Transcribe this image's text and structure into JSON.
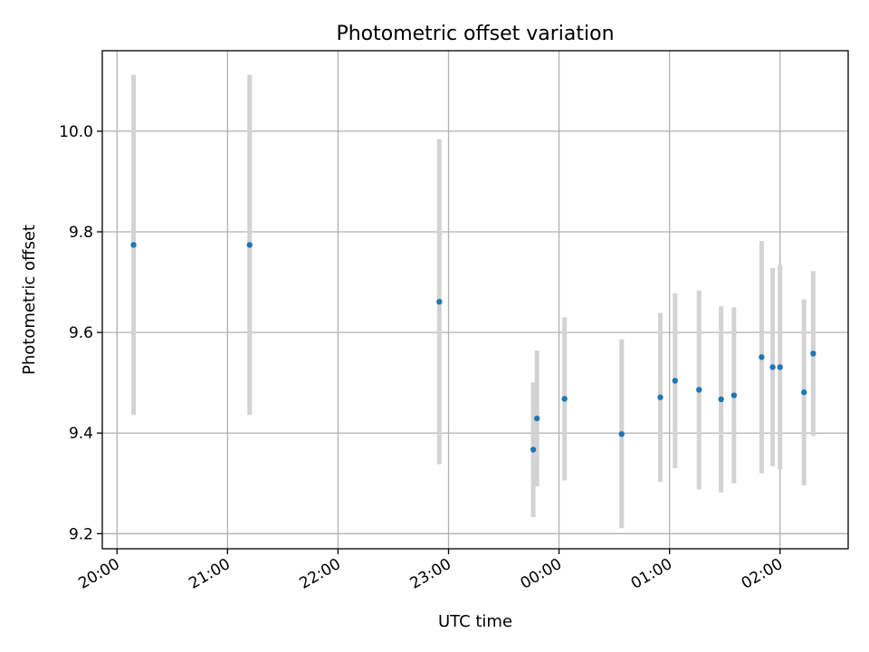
{
  "chart_data": {
    "type": "scatter",
    "title": "Photometric offset variation",
    "xlabel": "UTC time",
    "ylabel": "Photometric offset",
    "x_ticks": [
      "20:00",
      "21:00",
      "22:00",
      "23:00",
      "00:00",
      "01:00",
      "02:00"
    ],
    "y_ticks": [
      "9.2",
      "9.4",
      "9.6",
      "9.8",
      "10.0"
    ],
    "x_range": [
      "19:52",
      "02:37"
    ],
    "ylim": [
      9.17,
      10.16
    ],
    "grid": true,
    "colors": {
      "point": "#1f77b4",
      "errorbar": "#d3d3d3",
      "grid": "#b0b0b0"
    },
    "points": [
      {
        "x": "20:09",
        "y": 9.774,
        "ylo": 9.436,
        "yhi": 10.112
      },
      {
        "x": "21:12",
        "y": 9.774,
        "ylo": 9.436,
        "yhi": 10.112
      },
      {
        "x": "22:55",
        "y": 9.661,
        "ylo": 9.338,
        "yhi": 9.984
      },
      {
        "x": "23:46",
        "y": 9.367,
        "ylo": 9.233,
        "yhi": 9.501
      },
      {
        "x": "23:48",
        "y": 9.429,
        "ylo": 9.294,
        "yhi": 9.564
      },
      {
        "x": "00:03",
        "y": 9.468,
        "ylo": 9.306,
        "yhi": 9.63
      },
      {
        "x": "00:34",
        "y": 9.398,
        "ylo": 9.211,
        "yhi": 9.586
      },
      {
        "x": "00:55",
        "y": 9.471,
        "ylo": 9.303,
        "yhi": 9.639
      },
      {
        "x": "01:03",
        "y": 9.504,
        "ylo": 9.33,
        "yhi": 9.678
      },
      {
        "x": "01:16",
        "y": 9.486,
        "ylo": 9.288,
        "yhi": 9.684
      },
      {
        "x": "01:28",
        "y": 9.467,
        "ylo": 9.282,
        "yhi": 9.652
      },
      {
        "x": "01:35",
        "y": 9.475,
        "ylo": 9.3,
        "yhi": 9.65
      },
      {
        "x": "01:50",
        "y": 9.551,
        "ylo": 9.32,
        "yhi": 9.782
      },
      {
        "x": "01:56",
        "y": 9.531,
        "ylo": 9.334,
        "yhi": 9.728
      },
      {
        "x": "02:00",
        "y": 9.531,
        "ylo": 9.328,
        "yhi": 9.734
      },
      {
        "x": "02:13",
        "y": 9.481,
        "ylo": 9.296,
        "yhi": 9.666
      },
      {
        "x": "02:18",
        "y": 9.558,
        "ylo": 9.394,
        "yhi": 9.722
      }
    ]
  }
}
